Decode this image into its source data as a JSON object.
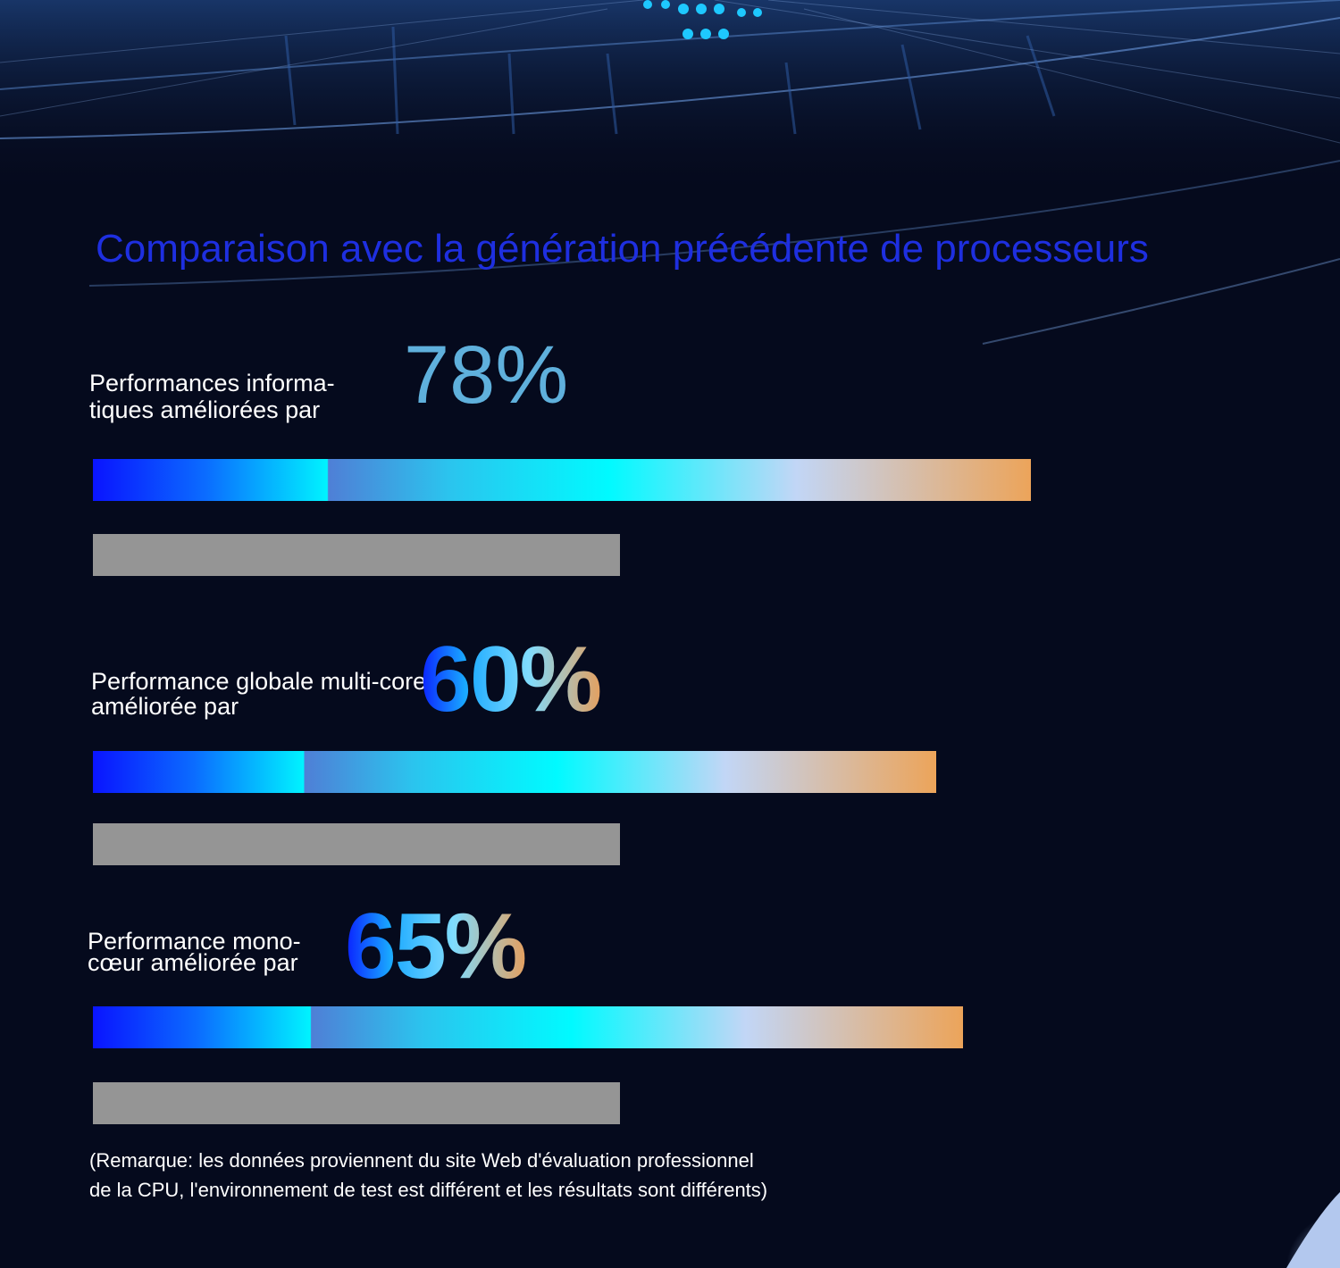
{
  "colors": {
    "background": "#050a1d",
    "title": "#1e2fe0",
    "new_bar_start": "#0a14ff",
    "new_bar_end": "#eca45a",
    "old_bar": "#959595"
  },
  "chart_data": {
    "type": "bar",
    "orientation": "horizontal",
    "title": "Comparaison avec la génération précédente de processeurs",
    "groups": [
      {
        "label_lines": [
          "Performances informa-",
          "tiques améliorées par"
        ],
        "improvement": "78%",
        "new_value": 1.78,
        "old_value": 1.0
      },
      {
        "label_lines": [
          "Performance globale multi-core",
          "améliorée par"
        ],
        "improvement": "60%",
        "new_value": 1.6,
        "old_value": 1.0
      },
      {
        "label_lines": [
          "Performance mono-",
          "cœur améliorée par"
        ],
        "improvement": "65%",
        "new_value": 1.65,
        "old_value": 1.0
      }
    ],
    "note_lines": [
      "(Remarque: les données proviennent du site Web d'évaluation professionnel",
      "de la CPU, l'environnement de test est différent et les résultats sont différents)"
    ]
  }
}
